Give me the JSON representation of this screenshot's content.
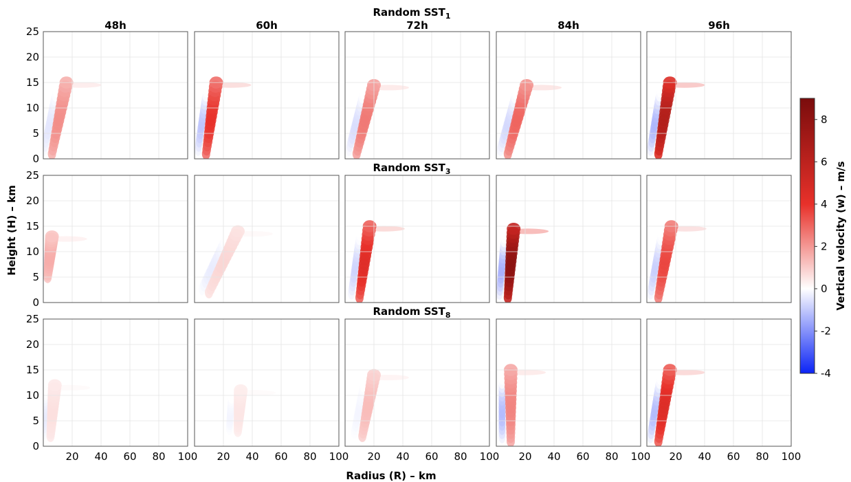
{
  "chart_data": {
    "type": "heatmap",
    "row_titles": [
      {
        "base": "Random SST",
        "sub": "1"
      },
      {
        "base": "Random SST",
        "sub": "3"
      },
      {
        "base": "Random SST",
        "sub": "8"
      }
    ],
    "column_titles": [
      "48h",
      "60h",
      "72h",
      "84h",
      "96h"
    ],
    "xlabel": "Radius (R) – km",
    "ylabel": "Height (H) – km",
    "xlim": [
      0,
      100
    ],
    "ylim": [
      0,
      25
    ],
    "xticks": [
      "20",
      "40",
      "60",
      "80",
      "100"
    ],
    "yticks": [
      "0",
      "5",
      "10",
      "15",
      "20",
      "25"
    ],
    "grid": true,
    "colorbar": {
      "label": "Vertical velocity (w) – m/s",
      "range": [
        -4,
        9
      ],
      "ticks": [
        "-4",
        "-2",
        "0",
        "2",
        "4",
        "6",
        "8"
      ],
      "colors": [
        "#0b24f5",
        "#ffffff",
        "#e8312a",
        "#7a0c0c"
      ]
    },
    "panels": [
      [
        {
          "updraft": {
            "r_base": 6,
            "r_top": 16,
            "z_base": 1,
            "z_top": 15,
            "w_max": 2.2
          },
          "downdraft_min": -0.5
        },
        {
          "updraft": {
            "r_base": 8,
            "r_top": 15,
            "z_base": 1,
            "z_top": 15,
            "w_max": 4.0
          },
          "downdraft_min": -1.2
        },
        {
          "updraft": {
            "r_base": 8,
            "r_top": 20,
            "z_base": 1,
            "z_top": 14.5,
            "w_max": 2.6
          },
          "downdraft_min": -0.7
        },
        {
          "updraft": {
            "r_base": 8,
            "r_top": 21,
            "z_base": 1,
            "z_top": 14.5,
            "w_max": 3.0
          },
          "downdraft_min": -0.8
        },
        {
          "updraft": {
            "r_base": 8,
            "r_top": 16,
            "z_base": 1,
            "z_top": 15,
            "w_max": 6.5
          },
          "downdraft_min": -1.5
        }
      ],
      [
        {
          "updraft": {
            "r_base": 3,
            "r_top": 6,
            "z_base": 5,
            "z_top": 13,
            "w_max": 1.6
          },
          "downdraft_min": -0.4
        },
        {
          "updraft": {
            "r_base": 10,
            "r_top": 30,
            "z_base": 2,
            "z_top": 14,
            "w_max": 0.8
          },
          "downdraft_min": -0.4
        },
        {
          "updraft": {
            "r_base": 10,
            "r_top": 17,
            "z_base": 1,
            "z_top": 15,
            "w_max": 4.4
          },
          "downdraft_min": -0.9
        },
        {
          "updraft": {
            "r_base": 8,
            "r_top": 12,
            "z_base": 1,
            "z_top": 14.5,
            "w_max": 8.2
          },
          "downdraft_min": -1.6
        },
        {
          "updraft": {
            "r_base": 8,
            "r_top": 17,
            "z_base": 1,
            "z_top": 15,
            "w_max": 3.6
          },
          "downdraft_min": -1.0
        }
      ],
      [
        {
          "updraft": {
            "r_base": 5,
            "r_top": 8,
            "z_base": 2,
            "z_top": 12,
            "w_max": 0.6
          },
          "downdraft_min": -0.4
        },
        {
          "updraft": {
            "r_base": 30,
            "r_top": 32,
            "z_base": 3,
            "z_top": 11,
            "w_max": 0.5
          },
          "downdraft_min": -0.2
        },
        {
          "updraft": {
            "r_base": 12,
            "r_top": 20,
            "z_base": 2,
            "z_top": 14,
            "w_max": 1.3
          },
          "downdraft_min": -0.2
        },
        {
          "updraft": {
            "r_base": 10,
            "r_top": 10,
            "z_base": 1,
            "z_top": 15,
            "w_max": 2.4
          },
          "downdraft_min": -1.4
        },
        {
          "updraft": {
            "r_base": 8,
            "r_top": 16,
            "z_base": 1,
            "z_top": 15,
            "w_max": 4.5
          },
          "downdraft_min": -1.4
        }
      ]
    ]
  }
}
